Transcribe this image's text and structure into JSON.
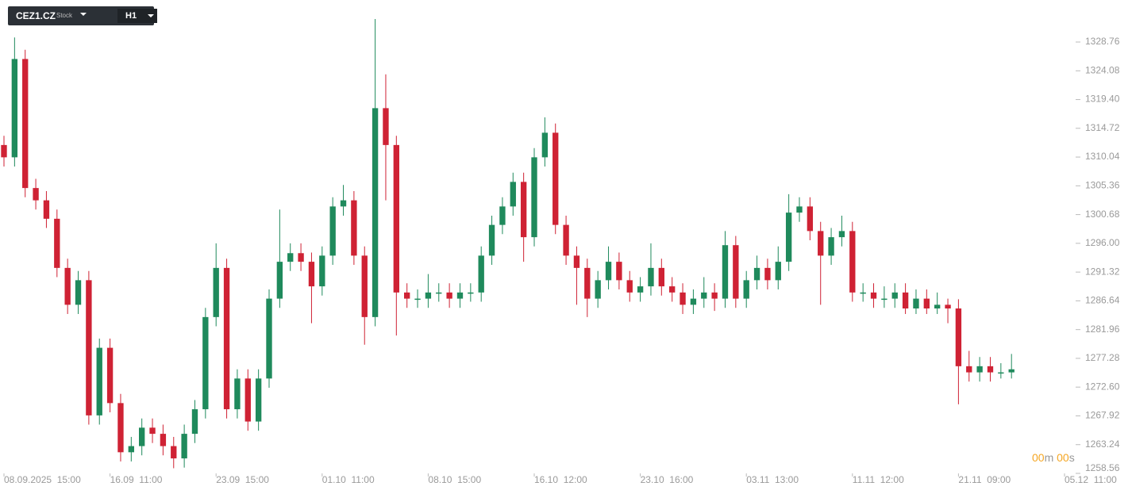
{
  "toolbar": {
    "symbol": "CEZ1.CZ",
    "kind": "Stock",
    "timeframe": "H1"
  },
  "countdown": {
    "minutes": "00",
    "minute_unit": "m",
    "seconds": "00",
    "second_unit": "s"
  },
  "chart_data": {
    "type": "candlestick",
    "up_color": "#1f8a5c",
    "down_color": "#cf2234",
    "xlim": [
      0,
      100
    ],
    "ylim": [
      1258.56,
      1335.6
    ],
    "xticks": [
      {
        "value": 0,
        "label": "08.09.2025  15:00"
      },
      {
        "value": 10,
        "label": "16.09  11:00"
      },
      {
        "value": 20,
        "label": "23.09  15:00"
      },
      {
        "value": 30,
        "label": "01.10  11:00"
      },
      {
        "value": 40,
        "label": "08.10  15:00"
      },
      {
        "value": 50,
        "label": "16.10  12:00"
      },
      {
        "value": 60,
        "label": "23.10  16:00"
      },
      {
        "value": 70,
        "label": "03.11  13:00"
      },
      {
        "value": 80,
        "label": "11.11  12:00"
      },
      {
        "value": 90,
        "label": "21.11  09:00"
      },
      {
        "value": 100,
        "label": "05.12  11:00"
      }
    ],
    "yticks": [
      1258.56,
      1263.24,
      1267.92,
      {
        "value": 1272.6,
        "label": "1272.60"
      },
      1277.28,
      1281.96,
      1286.64,
      1291.32,
      {
        "value": 1296,
        "label": "1296.00"
      },
      1300.68,
      1305.36,
      1310.04,
      1314.72,
      {
        "value": 1319.4,
        "label": "1319.40"
      },
      1324.08,
      1328.76
    ],
    "x": [
      0,
      1,
      2,
      3,
      4,
      5,
      6,
      7,
      8,
      9,
      10,
      11,
      12,
      13,
      14,
      15,
      16,
      17,
      18,
      19,
      20,
      21,
      22,
      23,
      24,
      25,
      26,
      27,
      28,
      29,
      30,
      31,
      32,
      33,
      34,
      35,
      36,
      37,
      38,
      39,
      40,
      41,
      42,
      43,
      44,
      45,
      46,
      47,
      48,
      49,
      50,
      51,
      52,
      53,
      54,
      55,
      56,
      57,
      58,
      59,
      60,
      61,
      62,
      63,
      64,
      65,
      66,
      67,
      68,
      69,
      70,
      71,
      72,
      73,
      74,
      75,
      76,
      77,
      78,
      79,
      80,
      81,
      82,
      83,
      84,
      85,
      86,
      87,
      88,
      89,
      90,
      91,
      92,
      93,
      94,
      95
    ],
    "open": [
      1312,
      1310,
      1326,
      1305,
      1303,
      1300,
      1292,
      1286,
      1290,
      1268,
      1279,
      1270,
      1262,
      1263,
      1266,
      1265,
      1263,
      1261,
      1265,
      1269,
      1284,
      1292,
      1269,
      1274,
      1267,
      1274,
      1287,
      1293,
      1294.4,
      1293,
      1289,
      1294,
      1302,
      1303,
      1294,
      1284,
      1318,
      1312,
      1288,
      1287,
      1287,
      1288,
      1288,
      1287,
      1288,
      1288,
      1294,
      1299,
      1302,
      1306,
      1297,
      1310,
      1314,
      1299,
      1294,
      1292,
      1287,
      1290,
      1293,
      1290,
      1288,
      1289,
      1292,
      1289,
      1288,
      1286,
      1287,
      1288,
      1287,
      1295.7,
      1287,
      1290,
      1292,
      1290,
      1293,
      1301,
      1302,
      1298,
      1294,
      1297,
      1298,
      1288,
      1288,
      1287,
      1287,
      1288,
      1285.4,
      1287,
      1285.4,
      1286,
      1285.4,
      1276,
      1275,
      1276,
      1275,
      1275
    ],
    "high": [
      1313.5,
      1329.5,
      1327.5,
      1306.5,
      1304.5,
      1301.5,
      1293.5,
      1291.5,
      1291.5,
      1280.5,
      1280.5,
      1271.5,
      1264.5,
      1267.5,
      1267.5,
      1266.5,
      1264.5,
      1266.5,
      1270.5,
      1285.5,
      1296,
      1293.5,
      1275.5,
      1275.5,
      1275.5,
      1288.5,
      1301.5,
      1296,
      1296,
      1294.5,
      1295.5,
      1303.5,
      1305.5,
      1304.5,
      1295.5,
      1332.5,
      1323.5,
      1313.5,
      1289.5,
      1288.5,
      1291,
      1289.5,
      1289.5,
      1289.5,
      1289.5,
      1295.5,
      1300.5,
      1303.5,
      1307.5,
      1307.5,
      1311.5,
      1316.5,
      1315.5,
      1300.5,
      1295.5,
      1293.5,
      1291.5,
      1295.5,
      1294.5,
      1291.5,
      1290.5,
      1296,
      1293.5,
      1290.5,
      1289.5,
      1288.5,
      1290.5,
      1289.5,
      1298,
      1297.2,
      1291.5,
      1294,
      1293.5,
      1295.5,
      1304,
      1303.5,
      1303.5,
      1299.5,
      1298.5,
      1300.5,
      1299.5,
      1289.5,
      1289.5,
      1289,
      1289.5,
      1289.5,
      1288.5,
      1288.5,
      1288,
      1287,
      1286.9,
      1278.5,
      1277.5,
      1277.5,
      1276.5,
      1278
    ],
    "low": [
      1308.5,
      1308.5,
      1303.5,
      1301.5,
      1298.5,
      1290.5,
      1284.5,
      1284.5,
      1266.5,
      1266.5,
      1268.5,
      1260.5,
      1260.5,
      1261.5,
      1263.5,
      1261.5,
      1259.4,
      1259.5,
      1263.5,
      1267.5,
      1282.5,
      1267.5,
      1267.5,
      1265.5,
      1265.5,
      1272.5,
      1285.5,
      1291.5,
      1291.5,
      1283,
      1287.5,
      1292.5,
      1300.5,
      1292.5,
      1279.5,
      1282.5,
      1303,
      1281,
      1285.5,
      1285.5,
      1285.5,
      1286.5,
      1285.5,
      1285.5,
      1286.5,
      1286.5,
      1292.5,
      1297.5,
      1300.5,
      1293,
      1295.5,
      1308.5,
      1297.5,
      1292.5,
      1286,
      1284,
      1285.5,
      1288.5,
      1288.5,
      1286.5,
      1286.5,
      1287.5,
      1287.5,
      1286.5,
      1284.5,
      1284.5,
      1285.5,
      1285,
      1285.5,
      1285.5,
      1285.5,
      1288.5,
      1288.5,
      1288.5,
      1291.5,
      1299.5,
      1296.5,
      1286,
      1292.5,
      1295.5,
      1286.5,
      1286.5,
      1285.5,
      1285.5,
      1285.5,
      1284.5,
      1284.5,
      1284.5,
      1284.5,
      1283,
      1269.8,
      1273.5,
      1273.5,
      1273.5,
      1274,
      1274
    ],
    "close": [
      1310,
      1326,
      1305,
      1303,
      1300,
      1292,
      1286,
      1290,
      1268,
      1279,
      1270,
      1262,
      1263,
      1266,
      1265,
      1263,
      1261,
      1265,
      1269,
      1284,
      1292,
      1269,
      1274,
      1267,
      1274,
      1287,
      1293,
      1294.4,
      1293,
      1289,
      1294,
      1302,
      1303,
      1294,
      1284,
      1318,
      1312,
      1288,
      1287,
      1287,
      1288,
      1288,
      1287,
      1288,
      1288,
      1294,
      1299,
      1302,
      1306,
      1297,
      1310,
      1314,
      1299,
      1294,
      1292,
      1287,
      1290,
      1293,
      1290,
      1288,
      1289,
      1292,
      1289,
      1288,
      1286,
      1287,
      1288,
      1287,
      1295.7,
      1287,
      1290,
      1292,
      1290,
      1293,
      1301,
      1302,
      1298,
      1294,
      1297,
      1298,
      1288,
      1288,
      1287,
      1287,
      1288,
      1285.4,
      1287,
      1285.4,
      1286,
      1285.4,
      1276,
      1275,
      1276,
      1275,
      1275,
      1275.5
    ]
  }
}
